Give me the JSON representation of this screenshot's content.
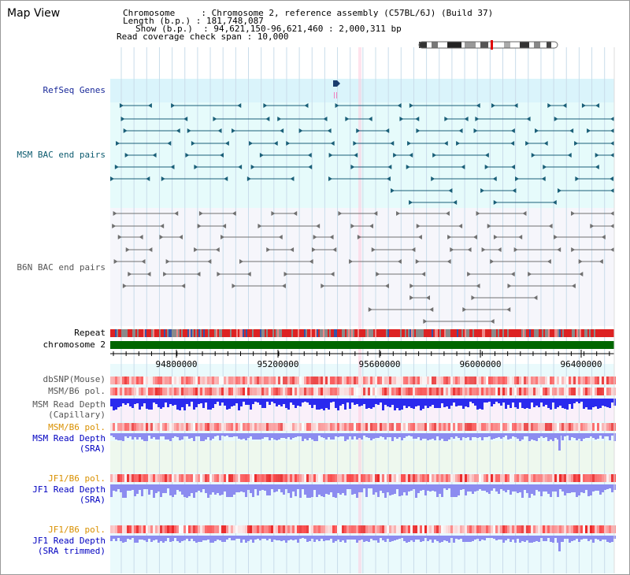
{
  "app": {
    "title": "Map View"
  },
  "info": {
    "chromosome_line": "Chromosome     : Chromosome 2, reference assembly (C57BL/6J) (Build 37)",
    "length_line": "Length (b.p.) : 181,748,087",
    "show_line": "Show (b.p.)  : 94,621,150-96,621,460 : 2,000,311 bp",
    "coverage_line": "Read coverage check span : 10,000"
  },
  "tracks": {
    "refseq": "RefSeq Genes",
    "msm_bac": "MSM BAC end pairs",
    "b6n_bac": "B6N BAC end pairs",
    "repeat": "Repeat",
    "chromosome": "chromosome 2",
    "dbsnp": "dbSNP(Mouse)",
    "msm_pol": "MSM/B6 pol.",
    "msm_depth_cap_1": "MSM Read Depth",
    "msm_depth_cap_2": "(Capillary)",
    "msm_pol_2": "MSM/B6 pol.",
    "msm_depth_sra_1": "MSM Read Depth",
    "msm_depth_sra_2": "(SRA)",
    "jf1_pol": "JF1/B6 pol.",
    "jf1_depth_1": "JF1 Read Depth",
    "jf1_depth_2": "(SRA)",
    "jf1_pol_2": "JF1/B6 pol.",
    "jf1_trim_1": "JF1 Read Depth",
    "jf1_trim_2": "(SRA trimmed)"
  },
  "axis": {
    "ticks": [
      "94800000",
      "95200000",
      "95600000",
      "96000000",
      "96400000"
    ]
  },
  "colors": {
    "refseq": "#1a5f78",
    "bac": "#707070",
    "repeat": "#dd2222",
    "chromosome": "#006600",
    "depth_msm": "#2a2aee",
    "depth_sra": "#8c8cf0"
  }
}
